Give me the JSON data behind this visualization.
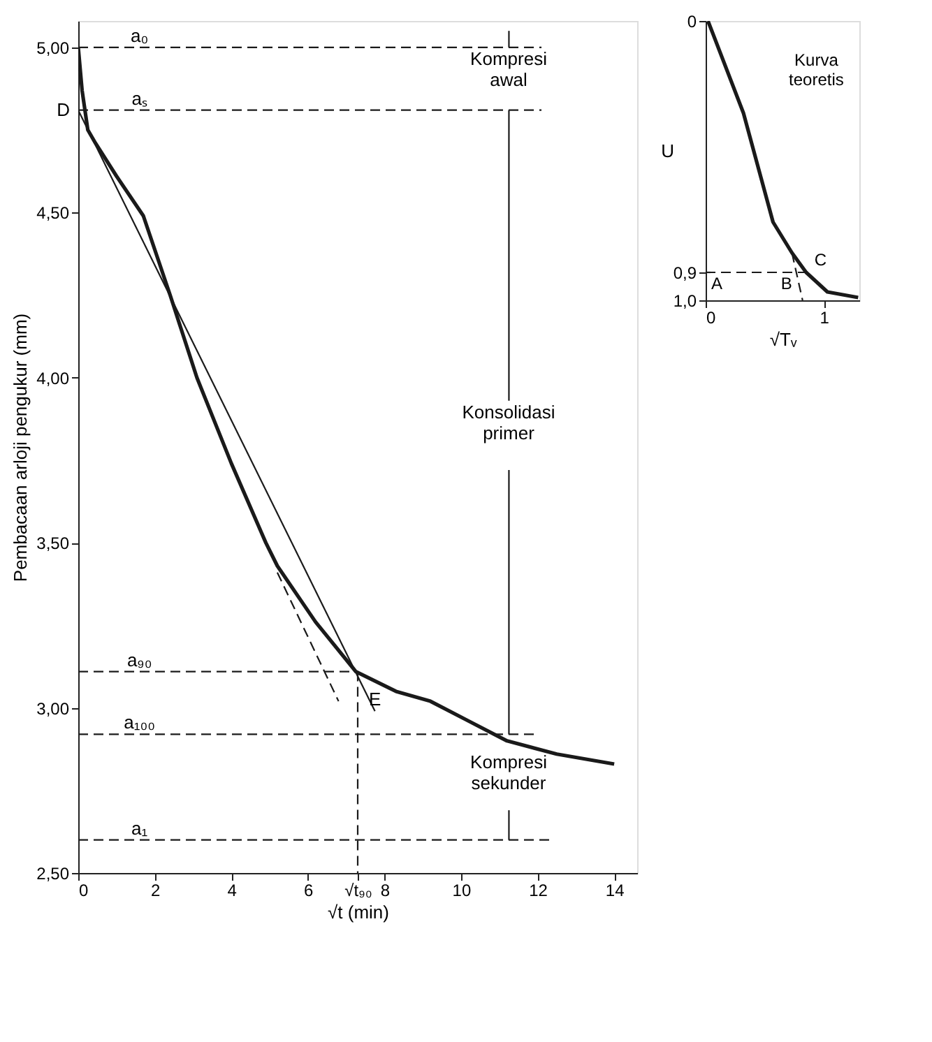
{
  "chart_data": [
    {
      "type": "line",
      "xlabel": "√t (min)",
      "ylabel": "Pembacaan arloji pengukur (mm)",
      "xlim": [
        0,
        14.6
      ],
      "ylim": [
        2.5,
        5.08
      ],
      "xticks": [
        0,
        2,
        4,
        6,
        {
          "value": 7.3,
          "label": "√t₉₀"
        },
        8,
        10,
        12,
        14
      ],
      "yticks": [
        {
          "value": 2.5,
          "label": "2,50"
        },
        {
          "value": 3.0,
          "label": "3,00"
        },
        {
          "value": 3.5,
          "label": "3,50"
        },
        {
          "value": 4.0,
          "label": "4,00"
        },
        {
          "value": 4.5,
          "label": "4,50"
        },
        {
          "value": 5.0,
          "label": "5,00"
        }
      ],
      "grid": false,
      "marker": "none",
      "series": [
        {
          "color": "#1a1a1a",
          "line_style": "solid",
          "x": [
            0,
            0.1,
            0.25,
            0.45,
            1.0,
            1.7,
            2.4,
            3.1,
            4.0,
            4.9,
            5.2,
            6.2,
            7.25,
            8.3,
            9.2,
            10.2,
            11.2,
            12.5,
            14.0
          ],
          "values": [
            5.0,
            4.87,
            4.75,
            4.71,
            4.61,
            4.49,
            4.25,
            4.0,
            3.74,
            3.5,
            3.43,
            3.26,
            3.11,
            3.05,
            3.02,
            2.96,
            2.9,
            2.86,
            2.83
          ]
        },
        {
          "color": "#1a1a1a",
          "line_style": "solid",
          "x": [
            0,
            7.75
          ],
          "values": [
            4.81,
            2.99
          ]
        },
        {
          "color": "#1a1a1a",
          "line_style": "dashed",
          "x": [
            5.2,
            6.8
          ],
          "values": [
            3.41,
            3.02
          ]
        },
        {
          "color": "#1a1a1a",
          "line_style": "dashed",
          "x": [
            0,
            12.1
          ],
          "values": [
            5.0,
            5.0
          ]
        },
        {
          "color": "#1a1a1a",
          "line_style": "dashed",
          "x": [
            0,
            12.1
          ],
          "values": [
            4.81,
            4.81
          ]
        },
        {
          "color": "#1a1a1a",
          "line_style": "dashed",
          "x": [
            0,
            7.3
          ],
          "values": [
            3.11,
            3.11
          ]
        },
        {
          "color": "#1a1a1a",
          "line_style": "dashed",
          "x": [
            0,
            12.0
          ],
          "values": [
            2.92,
            2.92
          ]
        },
        {
          "color": "#1a1a1a",
          "line_style": "dashed",
          "x": [
            0,
            12.3
          ],
          "values": [
            2.6,
            2.6
          ]
        },
        {
          "color": "#1a1a1a",
          "line_style": "dashed",
          "x": [
            7.3,
            7.3
          ],
          "values": [
            3.11,
            2.5
          ]
        },
        {
          "color": "#1a1a1a",
          "line_style": "solid",
          "x": [
            11.25,
            11.25
          ],
          "values": [
            5.05,
            5.0
          ]
        },
        {
          "color": "#1a1a1a",
          "line_style": "solid",
          "x": [
            11.25,
            11.25
          ],
          "values": [
            4.81,
            3.93
          ]
        },
        {
          "color": "#1a1a1a",
          "line_style": "solid",
          "x": [
            11.25,
            11.25
          ],
          "values": [
            3.72,
            2.92
          ]
        },
        {
          "color": "#1a1a1a",
          "line_style": "solid",
          "x": [
            11.25,
            11.25
          ],
          "values": [
            2.69,
            2.6
          ]
        }
      ],
      "annotations": [
        {
          "text": "a₀",
          "x": 1.6,
          "y": 5.0
        },
        {
          "text": "aₛ",
          "x": 1.6,
          "y": 4.81
        },
        {
          "text": "D",
          "x": 0,
          "y": 4.81
        },
        {
          "text": "a₉₀",
          "x": 1.6,
          "y": 3.11
        },
        {
          "text": "a₁₀₀",
          "x": 1.6,
          "y": 2.92
        },
        {
          "text": "a₁",
          "x": 1.6,
          "y": 2.6
        },
        {
          "text": "E",
          "x": 7.75,
          "y": 2.99
        },
        "Kompresi awal",
        "Konsolidasi primer",
        "Kompresi sekunder"
      ]
    },
    {
      "type": "line",
      "xlabel": "√Tᵥ",
      "ylabel": "U",
      "xlim": [
        0,
        1.3
      ],
      "ylim": [
        1.0,
        0
      ],
      "xticks": [
        0,
        1
      ],
      "yticks": [
        0,
        {
          "value": 0.9,
          "label": "0,9"
        },
        {
          "value": 1.0,
          "label": "1,0"
        }
      ],
      "grid": false,
      "marker": "none",
      "series": [
        {
          "color": "#1a1a1a",
          "line_style": "solid",
          "x": [
            0.02,
            0.32,
            0.57,
            0.73,
            0.85,
            1.03,
            1.29
          ],
          "values": [
            0,
            0.33,
            0.72,
            0.83,
            0.9,
            0.97,
            0.99
          ]
        },
        {
          "color": "#1a1a1a",
          "line_style": "dashed",
          "x": [
            0.73,
            0.767,
            0.82
          ],
          "values": [
            0.83,
            0.9,
            1.0
          ]
        },
        {
          "color": "#1a1a1a",
          "line_style": "dashed",
          "x": [
            0,
            0.85
          ],
          "values": [
            0.9,
            0.9
          ]
        }
      ],
      "annotations": [
        "Kurva teoretis",
        {
          "text": "A",
          "x": 0,
          "y": 0.9
        },
        {
          "text": "B",
          "x": 0.767,
          "y": 0.9
        },
        {
          "text": "C",
          "x": 0.85,
          "y": 0.9
        }
      ]
    }
  ]
}
